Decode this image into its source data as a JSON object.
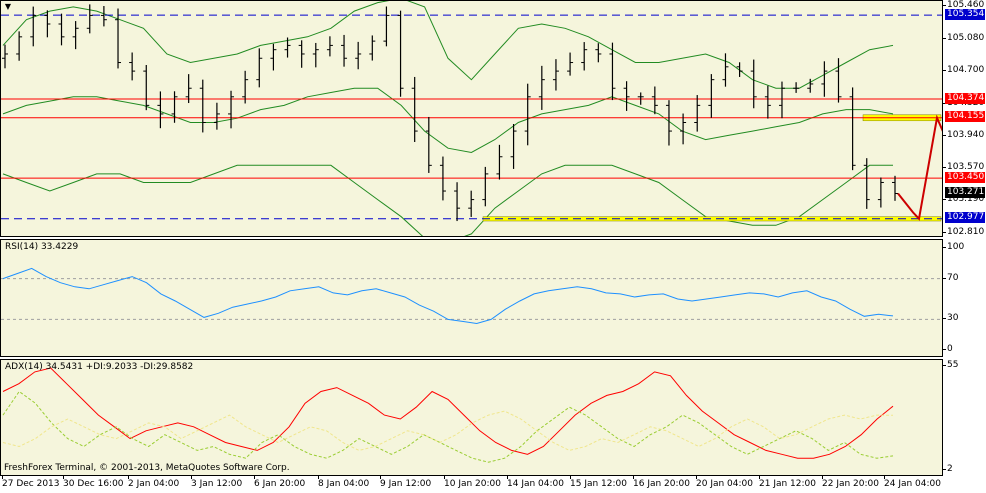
{
  "window": {
    "menu_icon": "triangle-down-icon"
  },
  "colors": {
    "background": "#f5f5dc",
    "candle": "#000000",
    "bollinger": "#228b22",
    "hline_red": "#ff0000",
    "hline_blue": "#0000cd",
    "zone_yellow": "#ffff00",
    "forecast": "#cc0000",
    "rsi_line": "#1e90ff",
    "adx_line": "#ff0000",
    "di_plus": "#9acd32",
    "di_minus": "#f0e68c"
  },
  "main_pane": {
    "price_labels": [
      "105.460",
      "105.080",
      "104.700",
      "104.320",
      "103.940",
      "103.570",
      "103.190",
      "102.810"
    ],
    "badges": [
      {
        "text": "105.354",
        "color": "#0000cd",
        "price": 105.354
      },
      {
        "text": "104.374",
        "color": "#ff0000",
        "price": 104.374
      },
      {
        "text": "104.155",
        "color": "#ff0000",
        "price": 104.155
      },
      {
        "text": "103.450",
        "color": "#ff0000",
        "price": 103.45
      },
      {
        "text": "103.271",
        "color": "#000000",
        "price": 103.271
      },
      {
        "text": "102.977",
        "color": "#0000cd",
        "price": 102.977
      }
    ]
  },
  "rsi_pane": {
    "label": "RSI(14) 33.4229",
    "levels": [
      "100",
      "70",
      "30",
      "0"
    ]
  },
  "adx_pane": {
    "label": "ADX(14) 34.5431 +DI:9.2033 -DI:29.8582",
    "levels": [
      "55",
      "2"
    ]
  },
  "footer": "FreshForex Terminal, © 2001-2013, MetaQuotes Software Corp.",
  "time_axis": [
    "27 Dec 2013",
    "30 Dec 16:00",
    "2 Jan 04:00",
    "3 Jan 12:00",
    "6 Jan 20:00",
    "8 Jan 04:00",
    "9 Jan 12:00",
    "10 Jan 20:00",
    "14 Jan 04:00",
    "15 Jan 12:00",
    "16 Jan 20:00",
    "20 Jan 04:00",
    "21 Jan 12:00",
    "22 Jan 20:00",
    "24 Jan 04:00"
  ],
  "chart_data": [
    {
      "type": "candlestick",
      "title": "",
      "x_range": [
        "27 Dec 2013",
        "24 Jan 04:00"
      ],
      "ylim": [
        102.81,
        105.46
      ],
      "horizontal_levels": [
        {
          "price": 105.354,
          "style": "dashed",
          "color": "#0000cd"
        },
        {
          "price": 104.374,
          "style": "solid",
          "color": "#ff0000"
        },
        {
          "price": 104.155,
          "style": "solid",
          "color": "#ff0000"
        },
        {
          "price": 103.45,
          "style": "solid",
          "color": "#ff0000"
        },
        {
          "price": 102.977,
          "style": "dashed",
          "color": "#0000cd"
        }
      ],
      "support_zones": [
        {
          "from": 102.95,
          "to": 103.0
        },
        {
          "from": 104.12,
          "to": 104.19
        }
      ],
      "close_path": [
        104.9,
        105.1,
        105.35,
        105.25,
        105.1,
        105.2,
        105.35,
        105.3,
        104.8,
        104.7,
        104.3,
        104.2,
        104.4,
        104.5,
        104.1,
        104.2,
        104.4,
        104.6,
        104.85,
        104.95,
        105.0,
        104.9,
        104.95,
        105.0,
        104.85,
        104.9,
        105.05,
        105.35,
        104.5,
        104.0,
        103.6,
        103.3,
        103.1,
        103.2,
        103.5,
        103.7,
        104.0,
        104.4,
        104.6,
        104.7,
        104.8,
        104.95,
        104.9,
        104.5,
        104.4,
        104.4,
        104.3,
        104.0,
        104.1,
        104.3,
        104.6,
        104.75,
        104.7,
        104.4,
        104.3,
        104.5,
        104.5,
        104.55,
        104.7,
        104.4,
        103.6,
        103.2,
        103.4,
        103.271
      ],
      "bollinger": {
        "upper": [
          105.0,
          105.3,
          105.4,
          105.45,
          105.4,
          105.3,
          105.2,
          104.9,
          104.8,
          104.85,
          104.9,
          105.0,
          105.05,
          105.1,
          105.2,
          105.4,
          105.5,
          105.55,
          105.45,
          104.85,
          104.6,
          104.9,
          105.2,
          105.25,
          105.2,
          105.1,
          104.95,
          104.8,
          104.8,
          104.85,
          104.9,
          104.8,
          104.6,
          104.5,
          104.5,
          104.65,
          104.8,
          104.95,
          105.0
        ],
        "middle": [
          104.2,
          104.3,
          104.35,
          104.4,
          104.4,
          104.35,
          104.3,
          104.2,
          104.1,
          104.1,
          104.15,
          104.25,
          104.3,
          104.4,
          104.45,
          104.5,
          104.5,
          104.3,
          104.0,
          103.8,
          103.75,
          103.9,
          104.1,
          104.2,
          104.25,
          104.3,
          104.4,
          104.3,
          104.2,
          104.0,
          103.9,
          103.95,
          104.0,
          104.05,
          104.1,
          104.2,
          104.25,
          104.25,
          104.2
        ],
        "lower": [
          103.5,
          103.4,
          103.3,
          103.4,
          103.5,
          103.5,
          103.4,
          103.4,
          103.4,
          103.5,
          103.6,
          103.6,
          103.6,
          103.6,
          103.6,
          103.4,
          103.2,
          103.0,
          102.75,
          102.7,
          102.8,
          103.1,
          103.3,
          103.5,
          103.6,
          103.6,
          103.6,
          103.5,
          103.4,
          103.2,
          103.0,
          102.95,
          102.9,
          102.9,
          103.0,
          103.2,
          103.4,
          103.6,
          103.6
        ]
      },
      "forecast_path": [
        103.271,
        103.05,
        102.977,
        104.155,
        102.977
      ]
    },
    {
      "type": "line",
      "title": "RSI(14) 33.4229",
      "ylim": [
        0,
        100
      ],
      "levels": [
        70,
        30
      ],
      "series": [
        {
          "name": "RSI(14)",
          "values": [
            70,
            75,
            80,
            72,
            66,
            62,
            60,
            64,
            68,
            72,
            66,
            55,
            48,
            40,
            32,
            36,
            42,
            45,
            48,
            52,
            58,
            60,
            62,
            56,
            54,
            58,
            60,
            56,
            52,
            44,
            38,
            30,
            28,
            26,
            30,
            40,
            48,
            55,
            58,
            60,
            62,
            60,
            56,
            55,
            52,
            54,
            55,
            50,
            48,
            50,
            52,
            54,
            56,
            55,
            52,
            56,
            58,
            52,
            48,
            40,
            33,
            35,
            33.4
          ]
        }
      ]
    },
    {
      "type": "line",
      "title": "ADX(14) 34.5431 +DI:9.2033 -DI:29.8582",
      "ylim": [
        2,
        55
      ],
      "series": [
        {
          "name": "ADX(14)",
          "values": [
            42,
            46,
            52,
            54,
            46,
            38,
            30,
            24,
            18,
            22,
            24,
            26,
            24,
            20,
            16,
            14,
            12,
            16,
            24,
            36,
            42,
            44,
            40,
            36,
            30,
            28,
            34,
            42,
            38,
            30,
            22,
            16,
            12,
            10,
            14,
            22,
            30,
            36,
            40,
            42,
            46,
            52,
            50,
            40,
            32,
            26,
            20,
            16,
            12,
            10,
            8,
            8,
            10,
            14,
            20,
            28,
            34.5
          ]
        },
        {
          "name": "+DI",
          "values": [
            30,
            42,
            36,
            26,
            18,
            14,
            20,
            24,
            18,
            14,
            20,
            16,
            12,
            14,
            10,
            8,
            16,
            20,
            14,
            10,
            8,
            12,
            18,
            14,
            10,
            14,
            20,
            16,
            12,
            8,
            6,
            8,
            14,
            22,
            28,
            34,
            30,
            24,
            18,
            14,
            20,
            24,
            30,
            26,
            20,
            14,
            10,
            14,
            18,
            22,
            18,
            12,
            16,
            10,
            8,
            9.2
          ]
        },
        {
          "name": "-DI",
          "values": [
            16,
            14,
            18,
            24,
            28,
            24,
            20,
            18,
            22,
            26,
            24,
            18,
            22,
            26,
            30,
            24,
            20,
            16,
            20,
            24,
            22,
            16,
            12,
            14,
            18,
            22,
            20,
            16,
            20,
            26,
            30,
            32,
            28,
            22,
            16,
            12,
            14,
            18,
            16,
            20,
            24,
            22,
            18,
            14,
            18,
            24,
            28,
            24,
            18,
            20,
            24,
            28,
            30,
            28,
            30,
            29.9
          ]
        }
      ]
    }
  ]
}
